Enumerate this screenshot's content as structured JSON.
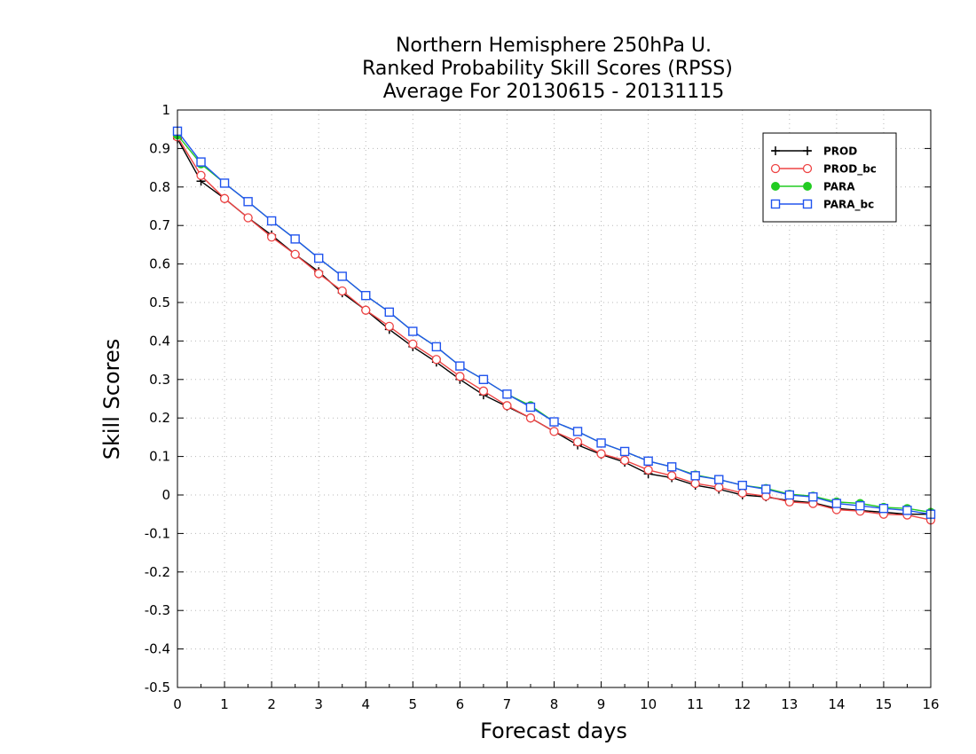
{
  "chart_data": {
    "type": "line",
    "title": [
      "Northern Hemisphere 250hPa U.",
      "Ranked Probability Skill Scores (RPSS)",
      "Average For 20130615 - 20131115"
    ],
    "xlabel": "Forecast days",
    "ylabel": "Skill Scores",
    "xlim": [
      0,
      16
    ],
    "ylim": [
      -0.5,
      1
    ],
    "x_ticks": [
      0,
      1,
      2,
      3,
      4,
      5,
      6,
      7,
      8,
      9,
      10,
      11,
      12,
      13,
      14,
      15,
      16
    ],
    "y_ticks": [
      -0.5,
      -0.4,
      -0.3,
      -0.2,
      -0.1,
      0,
      0.1,
      0.2,
      0.3,
      0.4,
      0.5,
      0.6,
      0.7,
      0.8,
      0.9,
      1
    ],
    "y_tick_labels": [
      "-0.5",
      "-0.4",
      "-0.3",
      "-0.2",
      "-0.1",
      "0",
      "0.1",
      "0.2",
      "0.3",
      "0.4",
      "0.5",
      "0.6",
      "0.7",
      "0.8",
      "0.9",
      "1"
    ],
    "x_tick_labels": [
      "0",
      "1",
      "2",
      "3",
      "4",
      "5",
      "6",
      "7",
      "8",
      "9",
      "10",
      "11",
      "12",
      "13",
      "14",
      "15",
      "16"
    ],
    "grid": true,
    "legend_position": "top-right",
    "x": [
      0,
      0.5,
      1,
      1.5,
      2,
      2.5,
      3,
      3.5,
      4,
      4.5,
      5,
      5.5,
      6,
      6.5,
      7,
      7.5,
      8,
      8.5,
      9,
      9.5,
      10,
      10.5,
      11,
      11.5,
      12,
      12.5,
      13,
      13.5,
      14,
      14.5,
      15,
      15.5,
      16
    ],
    "series": [
      {
        "name": "PROD",
        "color": "#000000",
        "marker": "plus",
        "values": [
          0.925,
          0.815,
          0.77,
          0.72,
          0.675,
          0.625,
          0.58,
          0.525,
          0.48,
          0.43,
          0.385,
          0.345,
          0.3,
          0.26,
          0.23,
          0.2,
          0.165,
          0.13,
          0.105,
          0.085,
          0.055,
          0.045,
          0.025,
          0.015,
          0.0,
          -0.005,
          -0.015,
          -0.02,
          -0.035,
          -0.04,
          -0.045,
          -0.05,
          -0.05
        ]
      },
      {
        "name": "PROD_bc",
        "color": "#ee4444",
        "marker": "circle",
        "values": [
          0.93,
          0.83,
          0.77,
          0.72,
          0.67,
          0.625,
          0.575,
          0.53,
          0.48,
          0.438,
          0.392,
          0.352,
          0.308,
          0.27,
          0.232,
          0.2,
          0.165,
          0.138,
          0.107,
          0.09,
          0.065,
          0.05,
          0.03,
          0.02,
          0.005,
          -0.003,
          -0.018,
          -0.022,
          -0.038,
          -0.042,
          -0.05,
          -0.052,
          -0.065
        ]
      },
      {
        "name": "PARA",
        "color": "#22cc22",
        "marker": "dot",
        "values": [
          0.935,
          0.86,
          0.81,
          0.762,
          0.712,
          0.665,
          0.615,
          0.568,
          0.518,
          0.475,
          0.425,
          0.385,
          0.335,
          0.3,
          0.262,
          0.232,
          0.19,
          0.165,
          0.135,
          0.113,
          0.088,
          0.073,
          0.052,
          0.04,
          0.025,
          0.017,
          0.002,
          -0.003,
          -0.018,
          -0.022,
          -0.032,
          -0.035,
          -0.045
        ]
      },
      {
        "name": "PARA_bc",
        "color": "#2255ee",
        "marker": "square",
        "values": [
          0.945,
          0.865,
          0.81,
          0.762,
          0.712,
          0.665,
          0.615,
          0.568,
          0.518,
          0.475,
          0.425,
          0.385,
          0.335,
          0.3,
          0.262,
          0.228,
          0.19,
          0.165,
          0.135,
          0.113,
          0.088,
          0.073,
          0.05,
          0.04,
          0.025,
          0.015,
          0.0,
          -0.005,
          -0.022,
          -0.028,
          -0.035,
          -0.04,
          -0.05
        ]
      }
    ]
  }
}
